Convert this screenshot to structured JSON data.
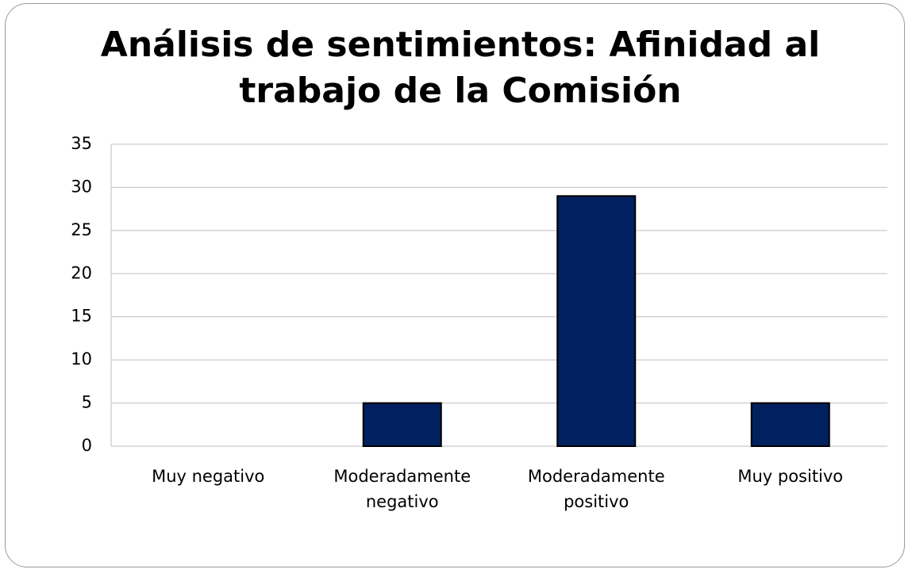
{
  "chart_data": {
    "type": "bar",
    "title": "Análisis de sentimientos: Afinidad al trabajo de la Comisión",
    "categories": [
      "Muy negativo",
      "Moderadamente negativo",
      "Moderadamente positivo",
      "Muy positivo"
    ],
    "values": [
      0,
      5,
      29,
      5
    ],
    "color": "#002060",
    "ylim": [
      0,
      35
    ],
    "yticks": [
      0,
      5,
      10,
      15,
      20,
      25,
      30,
      35
    ],
    "grid": true
  }
}
